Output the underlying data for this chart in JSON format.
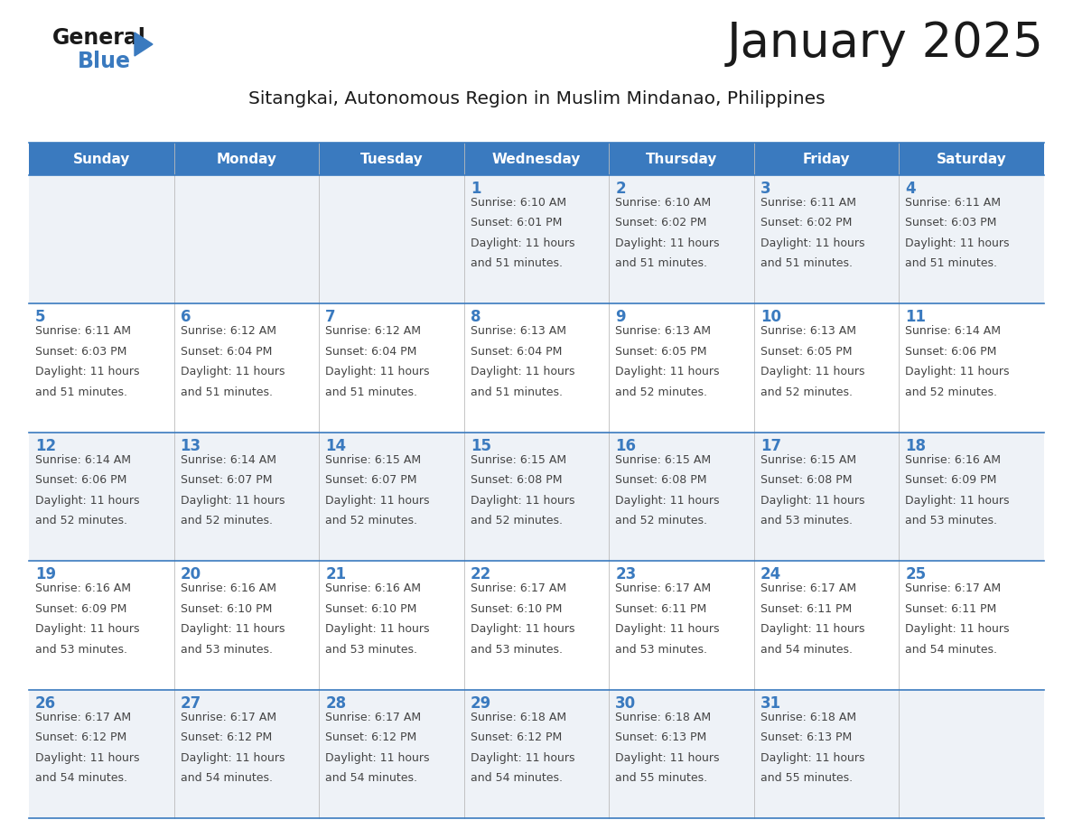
{
  "title": "January 2025",
  "subtitle": "Sitangkai, Autonomous Region in Muslim Mindanao, Philippines",
  "header_bg_color": "#3a7abf",
  "header_text_color": "#ffffff",
  "row_bg_colors": [
    "#eef2f7",
    "#ffffff"
  ],
  "day_number_color": "#3a7abf",
  "text_color": "#444444",
  "border_color": "#3a7abf",
  "days_of_week": [
    "Sunday",
    "Monday",
    "Tuesday",
    "Wednesday",
    "Thursday",
    "Friday",
    "Saturday"
  ],
  "calendar": [
    [
      {
        "day": "",
        "sunrise": "",
        "sunset": "",
        "daylight_h": "",
        "daylight_m": ""
      },
      {
        "day": "",
        "sunrise": "",
        "sunset": "",
        "daylight_h": "",
        "daylight_m": ""
      },
      {
        "day": "",
        "sunrise": "",
        "sunset": "",
        "daylight_h": "",
        "daylight_m": ""
      },
      {
        "day": "1",
        "sunrise": "6:10 AM",
        "sunset": "6:01 PM",
        "daylight_h": "11 hours",
        "daylight_m": "51 minutes."
      },
      {
        "day": "2",
        "sunrise": "6:10 AM",
        "sunset": "6:02 PM",
        "daylight_h": "11 hours",
        "daylight_m": "51 minutes."
      },
      {
        "day": "3",
        "sunrise": "6:11 AM",
        "sunset": "6:02 PM",
        "daylight_h": "11 hours",
        "daylight_m": "51 minutes."
      },
      {
        "day": "4",
        "sunrise": "6:11 AM",
        "sunset": "6:03 PM",
        "daylight_h": "11 hours",
        "daylight_m": "51 minutes."
      }
    ],
    [
      {
        "day": "5",
        "sunrise": "6:11 AM",
        "sunset": "6:03 PM",
        "daylight_h": "11 hours",
        "daylight_m": "51 minutes."
      },
      {
        "day": "6",
        "sunrise": "6:12 AM",
        "sunset": "6:04 PM",
        "daylight_h": "11 hours",
        "daylight_m": "51 minutes."
      },
      {
        "day": "7",
        "sunrise": "6:12 AM",
        "sunset": "6:04 PM",
        "daylight_h": "11 hours",
        "daylight_m": "51 minutes."
      },
      {
        "day": "8",
        "sunrise": "6:13 AM",
        "sunset": "6:04 PM",
        "daylight_h": "11 hours",
        "daylight_m": "51 minutes."
      },
      {
        "day": "9",
        "sunrise": "6:13 AM",
        "sunset": "6:05 PM",
        "daylight_h": "11 hours",
        "daylight_m": "52 minutes."
      },
      {
        "day": "10",
        "sunrise": "6:13 AM",
        "sunset": "6:05 PM",
        "daylight_h": "11 hours",
        "daylight_m": "52 minutes."
      },
      {
        "day": "11",
        "sunrise": "6:14 AM",
        "sunset": "6:06 PM",
        "daylight_h": "11 hours",
        "daylight_m": "52 minutes."
      }
    ],
    [
      {
        "day": "12",
        "sunrise": "6:14 AM",
        "sunset": "6:06 PM",
        "daylight_h": "11 hours",
        "daylight_m": "52 minutes."
      },
      {
        "day": "13",
        "sunrise": "6:14 AM",
        "sunset": "6:07 PM",
        "daylight_h": "11 hours",
        "daylight_m": "52 minutes."
      },
      {
        "day": "14",
        "sunrise": "6:15 AM",
        "sunset": "6:07 PM",
        "daylight_h": "11 hours",
        "daylight_m": "52 minutes."
      },
      {
        "day": "15",
        "sunrise": "6:15 AM",
        "sunset": "6:08 PM",
        "daylight_h": "11 hours",
        "daylight_m": "52 minutes."
      },
      {
        "day": "16",
        "sunrise": "6:15 AM",
        "sunset": "6:08 PM",
        "daylight_h": "11 hours",
        "daylight_m": "52 minutes."
      },
      {
        "day": "17",
        "sunrise": "6:15 AM",
        "sunset": "6:08 PM",
        "daylight_h": "11 hours",
        "daylight_m": "53 minutes."
      },
      {
        "day": "18",
        "sunrise": "6:16 AM",
        "sunset": "6:09 PM",
        "daylight_h": "11 hours",
        "daylight_m": "53 minutes."
      }
    ],
    [
      {
        "day": "19",
        "sunrise": "6:16 AM",
        "sunset": "6:09 PM",
        "daylight_h": "11 hours",
        "daylight_m": "53 minutes."
      },
      {
        "day": "20",
        "sunrise": "6:16 AM",
        "sunset": "6:10 PM",
        "daylight_h": "11 hours",
        "daylight_m": "53 minutes."
      },
      {
        "day": "21",
        "sunrise": "6:16 AM",
        "sunset": "6:10 PM",
        "daylight_h": "11 hours",
        "daylight_m": "53 minutes."
      },
      {
        "day": "22",
        "sunrise": "6:17 AM",
        "sunset": "6:10 PM",
        "daylight_h": "11 hours",
        "daylight_m": "53 minutes."
      },
      {
        "day": "23",
        "sunrise": "6:17 AM",
        "sunset": "6:11 PM",
        "daylight_h": "11 hours",
        "daylight_m": "53 minutes."
      },
      {
        "day": "24",
        "sunrise": "6:17 AM",
        "sunset": "6:11 PM",
        "daylight_h": "11 hours",
        "daylight_m": "54 minutes."
      },
      {
        "day": "25",
        "sunrise": "6:17 AM",
        "sunset": "6:11 PM",
        "daylight_h": "11 hours",
        "daylight_m": "54 minutes."
      }
    ],
    [
      {
        "day": "26",
        "sunrise": "6:17 AM",
        "sunset": "6:12 PM",
        "daylight_h": "11 hours",
        "daylight_m": "54 minutes."
      },
      {
        "day": "27",
        "sunrise": "6:17 AM",
        "sunset": "6:12 PM",
        "daylight_h": "11 hours",
        "daylight_m": "54 minutes."
      },
      {
        "day": "28",
        "sunrise": "6:17 AM",
        "sunset": "6:12 PM",
        "daylight_h": "11 hours",
        "daylight_m": "54 minutes."
      },
      {
        "day": "29",
        "sunrise": "6:18 AM",
        "sunset": "6:12 PM",
        "daylight_h": "11 hours",
        "daylight_m": "54 minutes."
      },
      {
        "day": "30",
        "sunrise": "6:18 AM",
        "sunset": "6:13 PM",
        "daylight_h": "11 hours",
        "daylight_m": "55 minutes."
      },
      {
        "day": "31",
        "sunrise": "6:18 AM",
        "sunset": "6:13 PM",
        "daylight_h": "11 hours",
        "daylight_m": "55 minutes."
      },
      {
        "day": "",
        "sunrise": "",
        "sunset": "",
        "daylight_h": "",
        "daylight_m": ""
      }
    ]
  ]
}
